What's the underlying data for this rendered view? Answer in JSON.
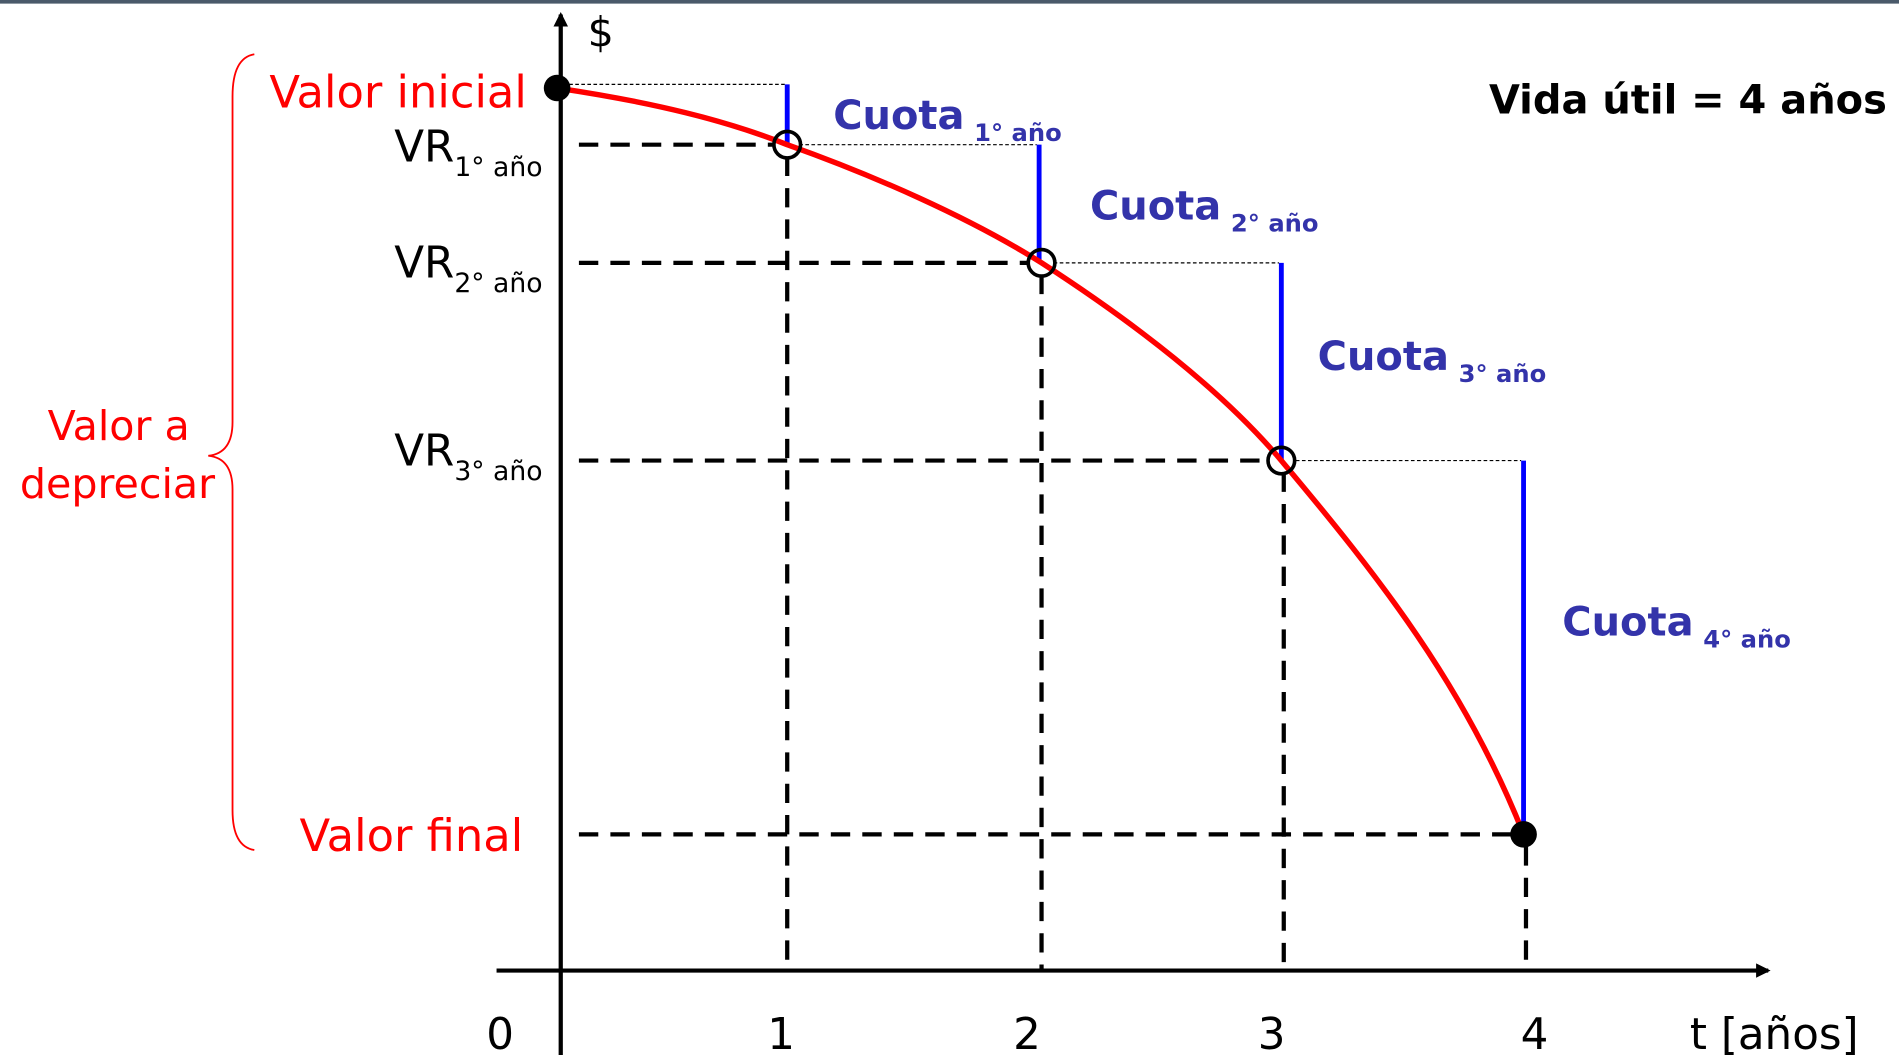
{
  "title": "Vida útil = 4 años",
  "axes": {
    "y_label": "$",
    "x_label": "t [años]",
    "ticks": [
      "0",
      "1",
      "2",
      "3",
      "4"
    ]
  },
  "values": {
    "initial": "Valor inicial",
    "final": "Valor final",
    "to_depreciate": [
      "Valor a",
      "depreciar"
    ]
  },
  "residuals": [
    {
      "base": "VR",
      "sub": "1° año"
    },
    {
      "base": "VR",
      "sub": "2° año"
    },
    {
      "base": "VR",
      "sub": "3° año"
    }
  ],
  "installments": [
    {
      "base": "Cuota",
      "sub": "1° año"
    },
    {
      "base": "Cuota",
      "sub": "2° año"
    },
    {
      "base": "Cuota",
      "sub": "3° año"
    },
    {
      "base": "Cuota",
      "sub": "4° año"
    }
  ]
}
